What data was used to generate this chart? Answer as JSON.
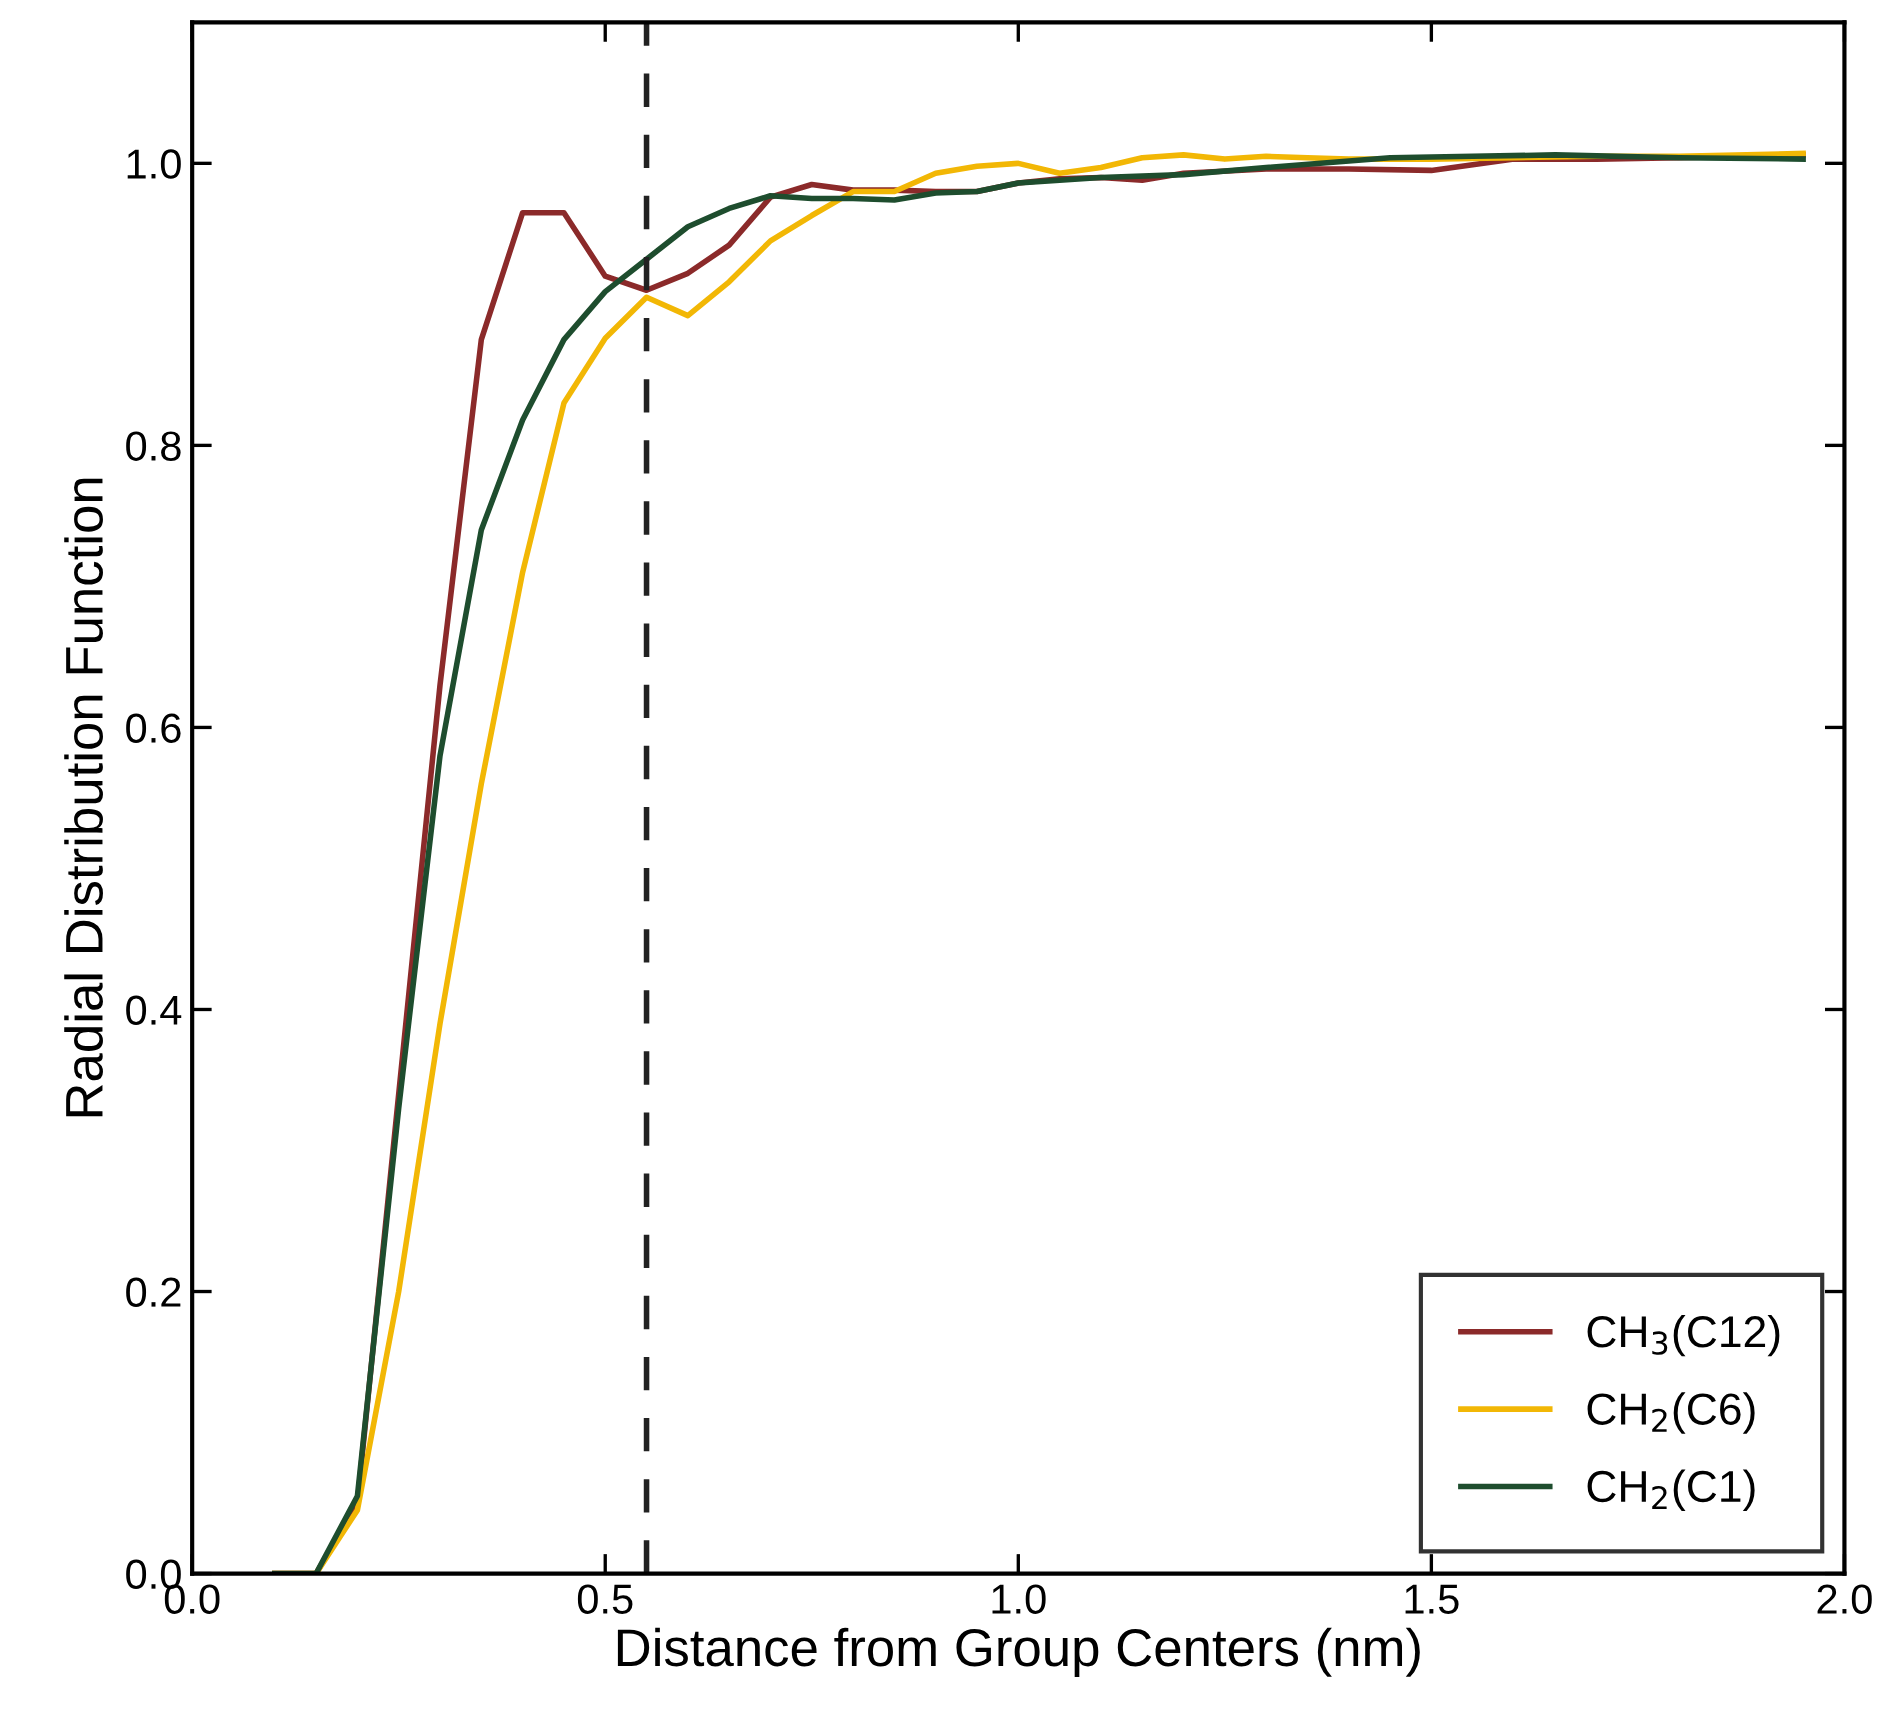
{
  "chart_data": {
    "type": "line",
    "xlabel": "Distance from Group Centers (nm)",
    "ylabel": "Radial Distribution Function",
    "xlim": [
      0.0,
      2.0
    ],
    "xticks": [
      {
        "value": 0,
        "label": "0.0"
      },
      0.5,
      {
        "value": 1,
        "label": "1.0"
      },
      1.5,
      {
        "value": 2,
        "label": "2.0"
      }
    ],
    "ylim": [
      0.0,
      1.1
    ],
    "yticks": [
      {
        "value": 0,
        "label": "0.0"
      },
      0.2,
      0.4,
      0.6,
      0.8,
      {
        "value": 1,
        "label": "1.0"
      }
    ],
    "grid": false,
    "legend": "bottom right",
    "marker": "none",
    "line_style": "solid",
    "ref_lines": [
      {
        "axis": "x",
        "value": 0.55,
        "color": "#222222",
        "line_style": "dashed"
      }
    ],
    "series": [
      {
        "name": "CH$_{3}$(C12)",
        "color": "#8b2a2a",
        "x": [
          0.1,
          0.15,
          0.2,
          0.25,
          0.3,
          0.35,
          0.4,
          0.45,
          0.5,
          0.55,
          0.6,
          0.65,
          0.7,
          0.75,
          0.8,
          0.85,
          0.9,
          0.95,
          1.0,
          1.05,
          1.1,
          1.15,
          1.2,
          1.3,
          1.4,
          1.5,
          1.6,
          1.7,
          1.8,
          1.95
        ],
        "values": [
          0,
          0,
          0.05,
          0.34,
          0.63,
          0.875,
          0.965,
          0.965,
          0.92,
          0.91,
          0.922,
          0.942,
          0.976,
          0.985,
          0.981,
          0.981,
          0.98,
          0.98,
          0.986,
          0.989,
          0.99,
          0.988,
          0.993,
          0.996,
          0.996,
          0.995,
          1.003,
          1.003,
          1.004,
          1.006
        ]
      },
      {
        "name": "CH$_{2}$(C6)",
        "color": "#f2b705",
        "x": [
          0.1,
          0.15,
          0.2,
          0.25,
          0.3,
          0.35,
          0.4,
          0.45,
          0.5,
          0.55,
          0.6,
          0.65,
          0.7,
          0.75,
          0.8,
          0.85,
          0.9,
          0.95,
          1.0,
          1.05,
          1.1,
          1.15,
          1.2,
          1.25,
          1.3,
          1.35,
          1.4,
          1.5,
          1.6,
          1.7,
          1.8,
          1.95
        ],
        "values": [
          0,
          0,
          0.045,
          0.2,
          0.39,
          0.56,
          0.71,
          0.83,
          0.876,
          0.905,
          0.892,
          0.916,
          0.945,
          0.963,
          0.98,
          0.98,
          0.993,
          0.998,
          1.0,
          0.993,
          0.997,
          1.004,
          1.006,
          1.003,
          1.005,
          1.004,
          1.003,
          1.003,
          1.004,
          1.005,
          1.005,
          1.007
        ]
      },
      {
        "name": "CH$_{2}$(C1)",
        "color": "#1e4d2e",
        "x": [
          0.1,
          0.15,
          0.2,
          0.25,
          0.3,
          0.35,
          0.4,
          0.45,
          0.5,
          0.55,
          0.6,
          0.65,
          0.7,
          0.75,
          0.8,
          0.85,
          0.9,
          0.95,
          1.0,
          1.1,
          1.2,
          1.3,
          1.45,
          1.55,
          1.65,
          1.8,
          1.95
        ],
        "values": [
          0,
          0,
          0.055,
          0.33,
          0.58,
          0.74,
          0.818,
          0.875,
          0.909,
          0.932,
          0.955,
          0.968,
          0.977,
          0.975,
          0.975,
          0.974,
          0.979,
          0.98,
          0.986,
          0.99,
          0.992,
          0.997,
          1.004,
          1.005,
          1.006,
          1.004,
          1.003
        ]
      }
    ]
  }
}
